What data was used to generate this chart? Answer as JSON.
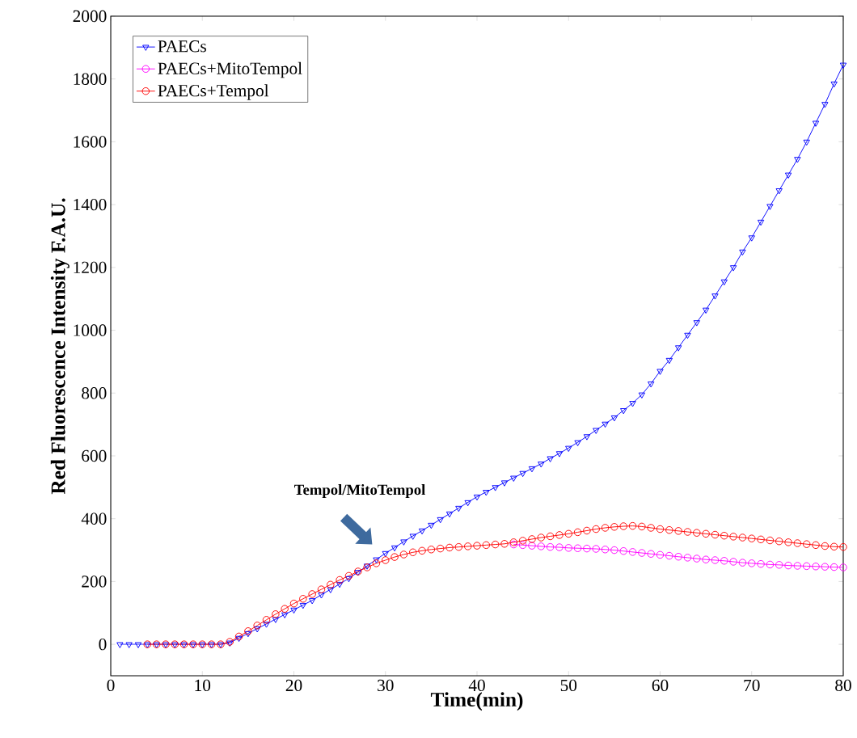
{
  "chart_data": {
    "type": "line",
    "xlabel": "Time(min)",
    "ylabel": "Red Fluorescence Intensity F.A.U.",
    "xlim": [
      0,
      80
    ],
    "xticks": [
      0,
      10,
      20,
      30,
      40,
      50,
      60,
      70,
      80
    ],
    "ylim": [
      -100,
      2000
    ],
    "yticks": [
      0,
      200,
      400,
      600,
      800,
      1000,
      1200,
      1400,
      1600,
      1800,
      2000
    ],
    "grid": false,
    "legend": "top left",
    "line_style": "solid",
    "annotations": [
      "Tempol/MitoTempol"
    ],
    "series": [
      {
        "name": "PAECs",
        "color": "#0000ff",
        "marker": "triangle",
        "x": [
          1,
          2,
          3,
          4,
          5,
          6,
          7,
          8,
          9,
          10,
          11,
          12,
          13,
          14,
          15,
          16,
          17,
          18,
          19,
          20,
          21,
          22,
          23,
          24,
          25,
          26,
          27,
          28,
          29,
          30,
          31,
          32,
          33,
          34,
          35,
          36,
          37,
          38,
          39,
          40,
          41,
          42,
          43,
          44,
          45,
          46,
          47,
          48,
          49,
          50,
          51,
          52,
          53,
          54,
          55,
          56,
          57,
          58,
          59,
          60,
          61,
          62,
          63,
          64,
          65,
          66,
          67,
          68,
          69,
          70,
          71,
          72,
          73,
          74,
          75,
          76,
          77,
          78,
          79,
          80
        ],
        "values": [
          0,
          0,
          0,
          0,
          0,
          0,
          0,
          0,
          0,
          0,
          0,
          0,
          5,
          20,
          35,
          50,
          65,
          80,
          95,
          110,
          125,
          140,
          158,
          175,
          192,
          210,
          230,
          250,
          270,
          290,
          308,
          327,
          345,
          362,
          380,
          398,
          416,
          434,
          452,
          470,
          485,
          500,
          515,
          530,
          545,
          560,
          575,
          592,
          608,
          625,
          643,
          662,
          682,
          702,
          722,
          745,
          768,
          795,
          830,
          870,
          905,
          945,
          985,
          1025,
          1065,
          1110,
          1155,
          1200,
          1250,
          1295,
          1345,
          1395,
          1445,
          1495,
          1545,
          1600,
          1660,
          1720,
          1785,
          1845
        ]
      },
      {
        "name": "PAECs+MitoTempol",
        "color": "#ff00ff",
        "marker": "circle",
        "x": [
          44,
          45,
          46,
          47,
          48,
          49,
          50,
          51,
          52,
          53,
          54,
          55,
          56,
          57,
          58,
          59,
          60,
          61,
          62,
          63,
          64,
          65,
          66,
          67,
          68,
          69,
          70,
          71,
          72,
          73,
          74,
          75,
          76,
          77,
          78,
          79,
          80
        ],
        "values": [
          318,
          316,
          314,
          312,
          310,
          309,
          307,
          306,
          305,
          304,
          302,
          300,
          297,
          294,
          291,
          288,
          285,
          282,
          279,
          276,
          273,
          270,
          268,
          266,
          263,
          260,
          258,
          256,
          254,
          253,
          251,
          250,
          249,
          248,
          247,
          246,
          245
        ]
      },
      {
        "name": "PAECs+Tempol",
        "color": "#ff0000",
        "marker": "circle",
        "x": [
          4,
          5,
          6,
          7,
          8,
          9,
          10,
          11,
          12,
          13,
          14,
          15,
          16,
          17,
          18,
          19,
          20,
          21,
          22,
          23,
          24,
          25,
          26,
          27,
          28,
          29,
          30,
          31,
          32,
          33,
          34,
          35,
          36,
          37,
          38,
          39,
          40,
          41,
          42,
          43,
          44,
          45,
          46,
          47,
          48,
          49,
          50,
          51,
          52,
          53,
          54,
          55,
          56,
          57,
          58,
          59,
          60,
          61,
          62,
          63,
          64,
          65,
          66,
          67,
          68,
          69,
          70,
          71,
          72,
          73,
          74,
          75,
          76,
          77,
          78,
          79,
          80
        ],
        "values": [
          0,
          0,
          0,
          0,
          0,
          0,
          0,
          0,
          0,
          8,
          25,
          42,
          60,
          78,
          96,
          113,
          130,
          145,
          160,
          175,
          190,
          205,
          218,
          232,
          245,
          258,
          268,
          278,
          286,
          293,
          298,
          302,
          305,
          308,
          310,
          312,
          314,
          316,
          318,
          320,
          325,
          330,
          335,
          340,
          344,
          348,
          352,
          357,
          362,
          367,
          371,
          374,
          376,
          377,
          375,
          371,
          367,
          364,
          361,
          358,
          355,
          352,
          349,
          346,
          343,
          340,
          337,
          334,
          331,
          328,
          325,
          322,
          319,
          316,
          313,
          311,
          310
        ]
      }
    ]
  }
}
